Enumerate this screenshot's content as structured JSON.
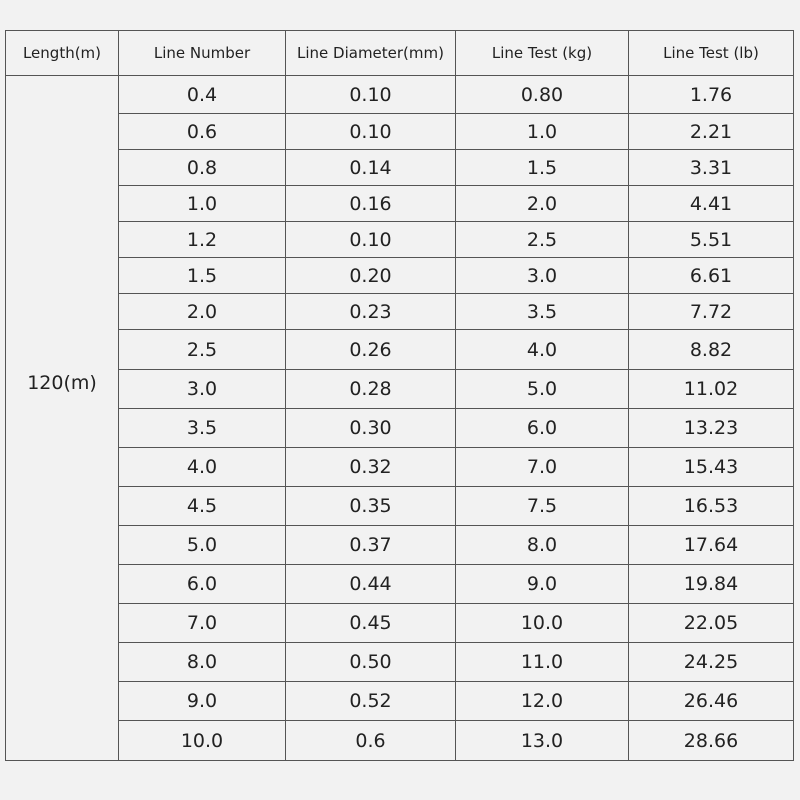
{
  "table": {
    "header": [
      "Length(m)",
      "Line Number",
      "Line Diameter(mm)",
      "Line Test (kg)",
      "Line Test (lb)"
    ],
    "length": "120(m)",
    "rows": [
      [
        "0.4",
        "0.10",
        "0.80",
        "1.76"
      ],
      [
        "0.6",
        "0.10",
        "1.0",
        "2.21"
      ],
      [
        "0.8",
        "0.14",
        "1.5",
        "3.31"
      ],
      [
        "1.0",
        "0.16",
        "2.0",
        "4.41"
      ],
      [
        "1.2",
        "0.10",
        "2.5",
        "5.51"
      ],
      [
        "1.5",
        "0.20",
        "3.0",
        "6.61"
      ],
      [
        "2.0",
        "0.23",
        "3.5",
        "7.72"
      ],
      [
        "2.5",
        "0.26",
        "4.0",
        "8.82"
      ],
      [
        "3.0",
        "0.28",
        "5.0",
        "11.02"
      ],
      [
        "3.5",
        "0.30",
        "6.0",
        "13.23"
      ],
      [
        "4.0",
        "0.32",
        "7.0",
        "15.43"
      ],
      [
        "4.5",
        "0.35",
        "7.5",
        "16.53"
      ],
      [
        "5.0",
        "0.37",
        "8.0",
        "17.64"
      ],
      [
        "6.0",
        "0.44",
        "9.0",
        "19.84"
      ],
      [
        "7.0",
        "0.45",
        "10.0",
        "22.05"
      ],
      [
        "8.0",
        "0.50",
        "11.0",
        "24.25"
      ],
      [
        "9.0",
        "0.52",
        "12.0",
        "26.46"
      ],
      [
        "10.0",
        "0.6",
        "13.0",
        "28.66"
      ]
    ]
  }
}
